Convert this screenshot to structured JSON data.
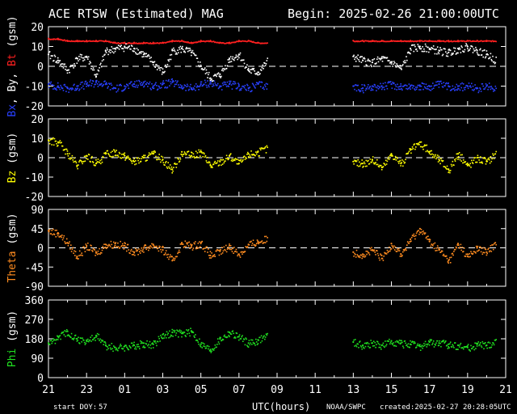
{
  "header": {
    "title": "ACE RTSW (Estimated) MAG",
    "begin": "Begin: 2025-02-26 21:00:00UTC"
  },
  "footer": {
    "start_doy_label": "start DOY:",
    "start_doy": "57",
    "xlabel": "UTC(hours)",
    "source": "NOAA/SWPC",
    "created": "created:2025-02-27 20:28:05UTC"
  },
  "colors": {
    "bg": "#000000",
    "axis": "#ffffff",
    "bt": "#ff2020",
    "bx": "#2840ff",
    "by": "#ffffff",
    "bz": "#ffff00",
    "theta": "#ff8c20",
    "phi": "#20e020"
  },
  "chart_data": [
    {
      "type": "scatter",
      "ylabel_parts": [
        {
          "text": "Bx",
          "color": "#2840ff"
        },
        {
          "text": ", ",
          "color": "#ffffff"
        },
        {
          "text": "By",
          "color": "#ffffff"
        },
        {
          "text": ", ",
          "color": "#ffffff"
        },
        {
          "text": "Bt",
          "color": "#ff2020"
        },
        {
          "text": " (gsm)",
          "color": "#ffffff"
        }
      ],
      "ylim": [
        -20,
        20
      ],
      "yticks": [
        -20,
        -10,
        0,
        10,
        20
      ],
      "zero_line": true,
      "data_gap_hours": [
        11.7,
        15.9
      ],
      "series": [
        {
          "name": "Bt",
          "color": "#ff2020",
          "x": [
            0,
            0.5,
            1,
            1.5,
            2,
            2.5,
            3,
            3.5,
            4,
            4.5,
            5,
            5.5,
            6,
            6.5,
            7,
            7.5,
            8,
            8.5,
            9,
            9.5,
            10,
            10.5,
            11,
            11.5,
            16,
            16.5,
            17,
            17.5,
            18,
            18.5,
            19,
            19.5,
            20,
            20.5,
            21,
            21.5,
            22,
            22.5,
            23,
            23.5
          ],
          "y": [
            14,
            14,
            13,
            13,
            13,
            13,
            13,
            12,
            12,
            12,
            12,
            12,
            12,
            13,
            13,
            12,
            13,
            13,
            12,
            12,
            13,
            13,
            12,
            12,
            13,
            13,
            13,
            13,
            13,
            13,
            13,
            13,
            13,
            13,
            13,
            13,
            13,
            13,
            13,
            13
          ]
        },
        {
          "name": "Bx",
          "color": "#2840ff",
          "x": [
            0,
            0.5,
            1,
            1.5,
            2,
            2.5,
            3,
            3.5,
            4,
            4.5,
            5,
            5.5,
            6,
            6.5,
            7,
            7.5,
            8,
            8.5,
            9,
            9.5,
            10,
            10.5,
            11,
            11.5,
            16,
            16.5,
            17,
            17.5,
            18,
            18.5,
            19,
            19.5,
            20,
            20.5,
            21,
            21.5,
            22,
            22.5,
            23,
            23.5
          ],
          "y": [
            -9,
            -10,
            -11,
            -10,
            -9,
            -8,
            -9,
            -11,
            -10,
            -9,
            -8,
            -10,
            -9,
            -8,
            -10,
            -11,
            -9,
            -8,
            -10,
            -9,
            -10,
            -11,
            -9,
            -10,
            -10,
            -11,
            -10,
            -10,
            -9,
            -10,
            -10,
            -10,
            -10,
            -9,
            -10,
            -10,
            -10,
            -11,
            -10,
            -11
          ]
        },
        {
          "name": "By",
          "color": "#ffffff",
          "x": [
            0,
            0.5,
            1,
            1.5,
            2,
            2.5,
            3,
            3.5,
            4,
            4.5,
            5,
            5.5,
            6,
            6.5,
            7,
            7.5,
            8,
            8.5,
            9,
            9.5,
            10,
            10.5,
            11,
            11.5,
            16,
            16.5,
            17,
            17.5,
            18,
            18.5,
            19,
            19.5,
            20,
            20.5,
            21,
            21.5,
            22,
            22.5,
            23,
            23.5
          ],
          "y": [
            6,
            3,
            -2,
            4,
            5,
            -5,
            8,
            9,
            10,
            9,
            6,
            2,
            -3,
            8,
            9,
            7,
            0,
            -6,
            -4,
            4,
            6,
            -2,
            -3,
            3,
            5,
            3,
            2,
            4,
            2,
            -1,
            9,
            10,
            9,
            8,
            7,
            9,
            10,
            8,
            6,
            3
          ]
        }
      ]
    },
    {
      "type": "scatter",
      "ylabel_parts": [
        {
          "text": "Bz",
          "color": "#ffff00"
        },
        {
          "text": " (gsm)",
          "color": "#ffffff"
        }
      ],
      "ylim": [
        -20,
        20
      ],
      "yticks": [
        -20,
        -10,
        0,
        10,
        20
      ],
      "zero_line": true,
      "data_gap_hours": [
        11.7,
        15.9
      ],
      "series": [
        {
          "name": "Bz",
          "color": "#ffff00",
          "x": [
            0,
            0.5,
            1,
            1.5,
            2,
            2.5,
            3,
            3.5,
            4,
            4.5,
            5,
            5.5,
            6,
            6.5,
            7,
            7.5,
            8,
            8.5,
            9,
            9.5,
            10,
            10.5,
            11,
            11.5,
            16,
            16.5,
            17,
            17.5,
            18,
            18.5,
            19,
            19.5,
            20,
            20.5,
            21,
            21.5,
            22,
            22.5,
            23,
            23.5
          ],
          "y": [
            9,
            8,
            2,
            -4,
            1,
            -3,
            2,
            3,
            1,
            -2,
            0,
            2,
            -1,
            -6,
            3,
            1,
            3,
            -4,
            -2,
            1,
            -3,
            2,
            3,
            5,
            -2,
            -3,
            -1,
            -5,
            2,
            -3,
            4,
            8,
            3,
            -1,
            -6,
            2,
            -4,
            0,
            -2,
            3
          ]
        }
      ]
    },
    {
      "type": "scatter",
      "ylabel_parts": [
        {
          "text": "Theta",
          "color": "#ff8c20"
        },
        {
          "text": " (gsm)",
          "color": "#ffffff"
        }
      ],
      "ylim": [
        -90,
        90
      ],
      "yticks": [
        -90,
        -45,
        0,
        45,
        90
      ],
      "zero_line": true,
      "data_gap_hours": [
        11.7,
        15.9
      ],
      "series": [
        {
          "name": "Theta",
          "color": "#ff8c20",
          "x": [
            0,
            0.5,
            1,
            1.5,
            2,
            2.5,
            3,
            3.5,
            4,
            4.5,
            5,
            5.5,
            6,
            6.5,
            7,
            7.5,
            8,
            8.5,
            9,
            9.5,
            10,
            10.5,
            11,
            11.5,
            16,
            16.5,
            17,
            17.5,
            18,
            18.5,
            19,
            19.5,
            20,
            20.5,
            21,
            21.5,
            22,
            22.5,
            23,
            23.5
          ],
          "y": [
            40,
            35,
            12,
            -20,
            5,
            -12,
            8,
            10,
            5,
            -10,
            0,
            8,
            -5,
            -30,
            12,
            5,
            12,
            -18,
            -8,
            5,
            -15,
            8,
            15,
            22,
            -10,
            -15,
            -5,
            -25,
            10,
            -15,
            20,
            45,
            15,
            -5,
            -30,
            10,
            -20,
            0,
            -10,
            15
          ]
        }
      ]
    },
    {
      "type": "scatter",
      "ylabel_parts": [
        {
          "text": "Phi",
          "color": "#20e020"
        },
        {
          "text": " (gsm)",
          "color": "#ffffff"
        }
      ],
      "ylim": [
        0,
        360
      ],
      "yticks": [
        0,
        90,
        180,
        270,
        360
      ],
      "zero_line": false,
      "data_gap_hours": [
        11.7,
        15.9
      ],
      "series": [
        {
          "name": "Phi",
          "color": "#20e020",
          "x": [
            0,
            0.5,
            1,
            1.5,
            2,
            2.5,
            3,
            3.5,
            4,
            4.5,
            5,
            5.5,
            6,
            6.5,
            7,
            7.5,
            8,
            8.5,
            9,
            9.5,
            10,
            10.5,
            11,
            11.5,
            16,
            16.5,
            17,
            17.5,
            18,
            18.5,
            19,
            19.5,
            20,
            20.5,
            21,
            21.5,
            22,
            22.5,
            23,
            23.5
          ],
          "y": [
            160,
            190,
            215,
            180,
            170,
            195,
            150,
            140,
            145,
            150,
            160,
            155,
            200,
            210,
            205,
            215,
            155,
            130,
            180,
            210,
            190,
            160,
            175,
            200,
            165,
            150,
            160,
            150,
            170,
            160,
            155,
            145,
            165,
            160,
            155,
            150,
            140,
            155,
            150,
            170
          ]
        }
      ]
    }
  ],
  "x_axis": {
    "hours_span": 24,
    "tick_labels": [
      "21",
      "23",
      "01",
      "03",
      "05",
      "07",
      "09",
      "11",
      "13",
      "15",
      "17",
      "19",
      "21"
    ]
  }
}
